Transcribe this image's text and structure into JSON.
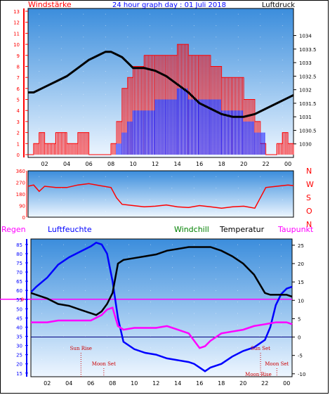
{
  "chart_data": [
    {
      "type": "line",
      "title": "24 hour graph day : 01 Juli 2018",
      "left_axis_label": "Windstärke",
      "right_axis_label": "Luftdruck",
      "x_ticks": [
        "02",
        "04",
        "06",
        "08",
        "10",
        "12",
        "14",
        "16",
        "18",
        "20",
        "22",
        "00"
      ],
      "left_ticks": [
        0,
        1,
        2,
        3,
        4,
        5,
        6,
        7,
        8,
        9,
        10,
        11,
        12,
        13
      ],
      "right_ticks": [
        1030,
        1030.5,
        1031,
        1031.5,
        1032,
        1032.5,
        1033,
        1033.5,
        1034
      ],
      "right_tick_labels": [
        "1030",
        "1030.5",
        "1031",
        "1031.5",
        "1032",
        "1032.5",
        "1033",
        "1033.5",
        "1034"
      ],
      "ylim_left": [
        0,
        13
      ],
      "ylim_right": [
        1029.5,
        1035.0
      ],
      "xlim_hours": [
        0.5,
        24.5
      ],
      "series": [
        {
          "name": "Windstärke",
          "color": "#ff0000",
          "kind": "gust_step",
          "x": [
            0.5,
            1.0,
            1.5,
            2.0,
            3.0,
            4.0,
            5.0,
            6.0,
            6.5,
            7.0,
            7.5,
            8.0,
            8.5,
            9.0,
            9.5,
            10.0,
            11.0,
            12.0,
            13.0,
            14.0,
            15.0,
            16.0,
            17.0,
            18.0,
            19.0,
            20.0,
            21.0,
            21.5,
            22.0,
            22.5,
            23.0,
            23.5,
            24.0,
            24.5
          ],
          "y": [
            0,
            1,
            2,
            1,
            2,
            1,
            2,
            0,
            0,
            0,
            0,
            1,
            3,
            6,
            7,
            8,
            9,
            9,
            9,
            10,
            9,
            9,
            8,
            7,
            7,
            5,
            3,
            1,
            0,
            0,
            1,
            2,
            1,
            0
          ]
        },
        {
          "name": "Wind",
          "color": "#0000ff",
          "kind": "mean_step",
          "x": [
            0.5,
            2.0,
            4.0,
            6.0,
            8.0,
            8.5,
            9.0,
            9.5,
            10.0,
            11.0,
            12.0,
            13.0,
            14.0,
            15.0,
            16.0,
            17.0,
            18.0,
            19.0,
            20.0,
            21.0,
            22.0,
            23.0,
            24.5
          ],
          "y": [
            0,
            0,
            0,
            0,
            0,
            1,
            2,
            3,
            4,
            4,
            5,
            5,
            6,
            5,
            5,
            5,
            4,
            4,
            3,
            2,
            0,
            0,
            0
          ]
        },
        {
          "name": "Luftdruck",
          "color": "#000000",
          "kind": "line",
          "x": [
            0.5,
            1.0,
            2.0,
            3.0,
            4.0,
            5.0,
            6.0,
            6.5,
            7.0,
            7.5,
            8.0,
            8.5,
            9.0,
            9.5,
            10.0,
            11.0,
            12.0,
            13.0,
            14.0,
            15.0,
            16.0,
            17.0,
            18.0,
            19.0,
            20.0,
            21.0,
            22.0,
            23.0,
            24.0,
            24.5
          ],
          "y": [
            1031.9,
            1031.9,
            1032.1,
            1032.3,
            1032.5,
            1032.8,
            1033.1,
            1033.2,
            1033.3,
            1033.4,
            1033.4,
            1033.3,
            1033.2,
            1033.0,
            1032.8,
            1032.8,
            1032.7,
            1032.5,
            1032.2,
            1031.9,
            1031.5,
            1031.3,
            1031.1,
            1031.0,
            1031.0,
            1031.1,
            1031.3,
            1031.5,
            1031.7,
            1031.8
          ]
        }
      ]
    },
    {
      "type": "line",
      "left_ticks": [
        0,
        90,
        180,
        270,
        360
      ],
      "right_letters": [
        "N",
        "W",
        "S",
        "O",
        "N"
      ],
      "ylim": [
        0,
        360
      ],
      "xlim_hours": [
        0.5,
        24.5
      ],
      "series": [
        {
          "name": "Windrichtung",
          "color": "#ff0000",
          "x": [
            0.5,
            1.0,
            1.5,
            2.0,
            3.0,
            4.0,
            5.0,
            6.0,
            7.0,
            8.0,
            8.5,
            9.0,
            10.0,
            11.0,
            12.0,
            13.0,
            14.0,
            15.0,
            16.0,
            17.0,
            18.0,
            19.0,
            20.0,
            21.0,
            22.0,
            23.0,
            24.0,
            24.5
          ],
          "y": [
            240,
            250,
            200,
            240,
            230,
            230,
            250,
            260,
            245,
            230,
            150,
            100,
            90,
            80,
            85,
            95,
            80,
            75,
            90,
            80,
            70,
            80,
            85,
            70,
            230,
            240,
            250,
            245
          ]
        }
      ]
    },
    {
      "type": "line",
      "labels": {
        "regen": "Regen",
        "luftfeuchte": "Luftfeuchte",
        "windchill": "Windchill",
        "temperatur": "Temperatur",
        "taupunkt": "Taupunkt"
      },
      "left_ticks": [
        15,
        20,
        25,
        30,
        35,
        40,
        45,
        50,
        55,
        60,
        65,
        70,
        75,
        80,
        85
      ],
      "right_ticks": [
        -10,
        -5,
        0,
        5,
        10,
        15,
        20,
        25
      ],
      "regen_tick": "0",
      "ylim_left": [
        13,
        88
      ],
      "ylim_right": [
        -10.8,
        26.7
      ],
      "x_ticks": [
        "02",
        "04",
        "06",
        "08",
        "10",
        "12",
        "14",
        "16",
        "18",
        "20",
        "22",
        "00"
      ],
      "xlim_hours": [
        0.5,
        24.5
      ],
      "zero_line_right": 0,
      "events": [
        {
          "label": "Sun Rise",
          "hour": 5.1,
          "row": 1
        },
        {
          "label": "Moon Set",
          "hour": 7.2,
          "row": 2
        },
        {
          "label": "Sun Set",
          "hour": 21.6,
          "row": 1
        },
        {
          "label": "Moon Set",
          "hour": 23.1,
          "row": 2
        },
        {
          "label": "Moon Rise",
          "hour": 21.4,
          "row": 3
        }
      ],
      "series": [
        {
          "name": "Luftfeuchte",
          "color": "#0000ff",
          "axis": "left",
          "x": [
            0.5,
            1.0,
            2.0,
            3.0,
            4.0,
            5.0,
            6.0,
            6.5,
            7.0,
            7.5,
            8.0,
            8.5,
            9.0,
            10.0,
            11.0,
            12.0,
            13.0,
            14.0,
            15.0,
            15.5,
            16.0,
            16.5,
            17.0,
            18.0,
            19.0,
            20.0,
            21.0,
            22.0,
            22.5,
            23.0,
            23.5,
            24.0,
            24.5
          ],
          "y": [
            59,
            62,
            67,
            74,
            78,
            81,
            84,
            86,
            85,
            80,
            65,
            45,
            32,
            28,
            26,
            25,
            23,
            22,
            21,
            20,
            18,
            16,
            18,
            20,
            24,
            27,
            29,
            33,
            40,
            52,
            58,
            61,
            62
          ]
        },
        {
          "name": "Temperatur",
          "color": "#000000",
          "axis": "right",
          "x": [
            0.5,
            1.0,
            2.0,
            3.0,
            4.0,
            5.0,
            6.0,
            6.5,
            7.0,
            7.5,
            8.0,
            8.5,
            9.0,
            10.0,
            11.0,
            12.0,
            13.0,
            14.0,
            15.0,
            16.0,
            17.0,
            18.0,
            19.0,
            20.0,
            21.0,
            22.0,
            22.5,
            23.0,
            23.5,
            24.0,
            24.5
          ],
          "y": [
            12.0,
            11.5,
            10.5,
            9.0,
            8.5,
            7.5,
            6.5,
            6.0,
            7.0,
            9.0,
            12.0,
            20.0,
            21.0,
            21.5,
            22.0,
            22.5,
            23.5,
            24.0,
            24.5,
            24.5,
            24.5,
            23.5,
            22.0,
            20.0,
            17.0,
            12.0,
            11.5,
            11.5,
            11.5,
            11.5,
            11.0
          ]
        },
        {
          "name": "Taupunkt",
          "color": "#ff00ff",
          "axis": "right",
          "x": [
            0.5,
            1.0,
            2.0,
            3.0,
            4.0,
            5.0,
            6.0,
            7.0,
            7.5,
            8.0,
            8.5,
            9.0,
            10.0,
            11.0,
            12.0,
            13.0,
            14.0,
            15.0,
            15.5,
            16.0,
            16.5,
            17.0,
            17.5,
            18.0,
            19.0,
            20.0,
            21.0,
            22.0,
            23.0,
            24.0,
            24.5
          ],
          "y": [
            4.0,
            4.0,
            4.0,
            4.5,
            4.5,
            4.5,
            4.5,
            6.0,
            7.5,
            8.0,
            3.0,
            2.0,
            2.5,
            2.5,
            2.5,
            3.0,
            2.0,
            1.0,
            -1.0,
            -3.0,
            -2.5,
            -1.0,
            0.0,
            1.0,
            1.5,
            2.0,
            3.0,
            3.5,
            4.0,
            4.0,
            3.5
          ]
        }
      ]
    }
  ]
}
